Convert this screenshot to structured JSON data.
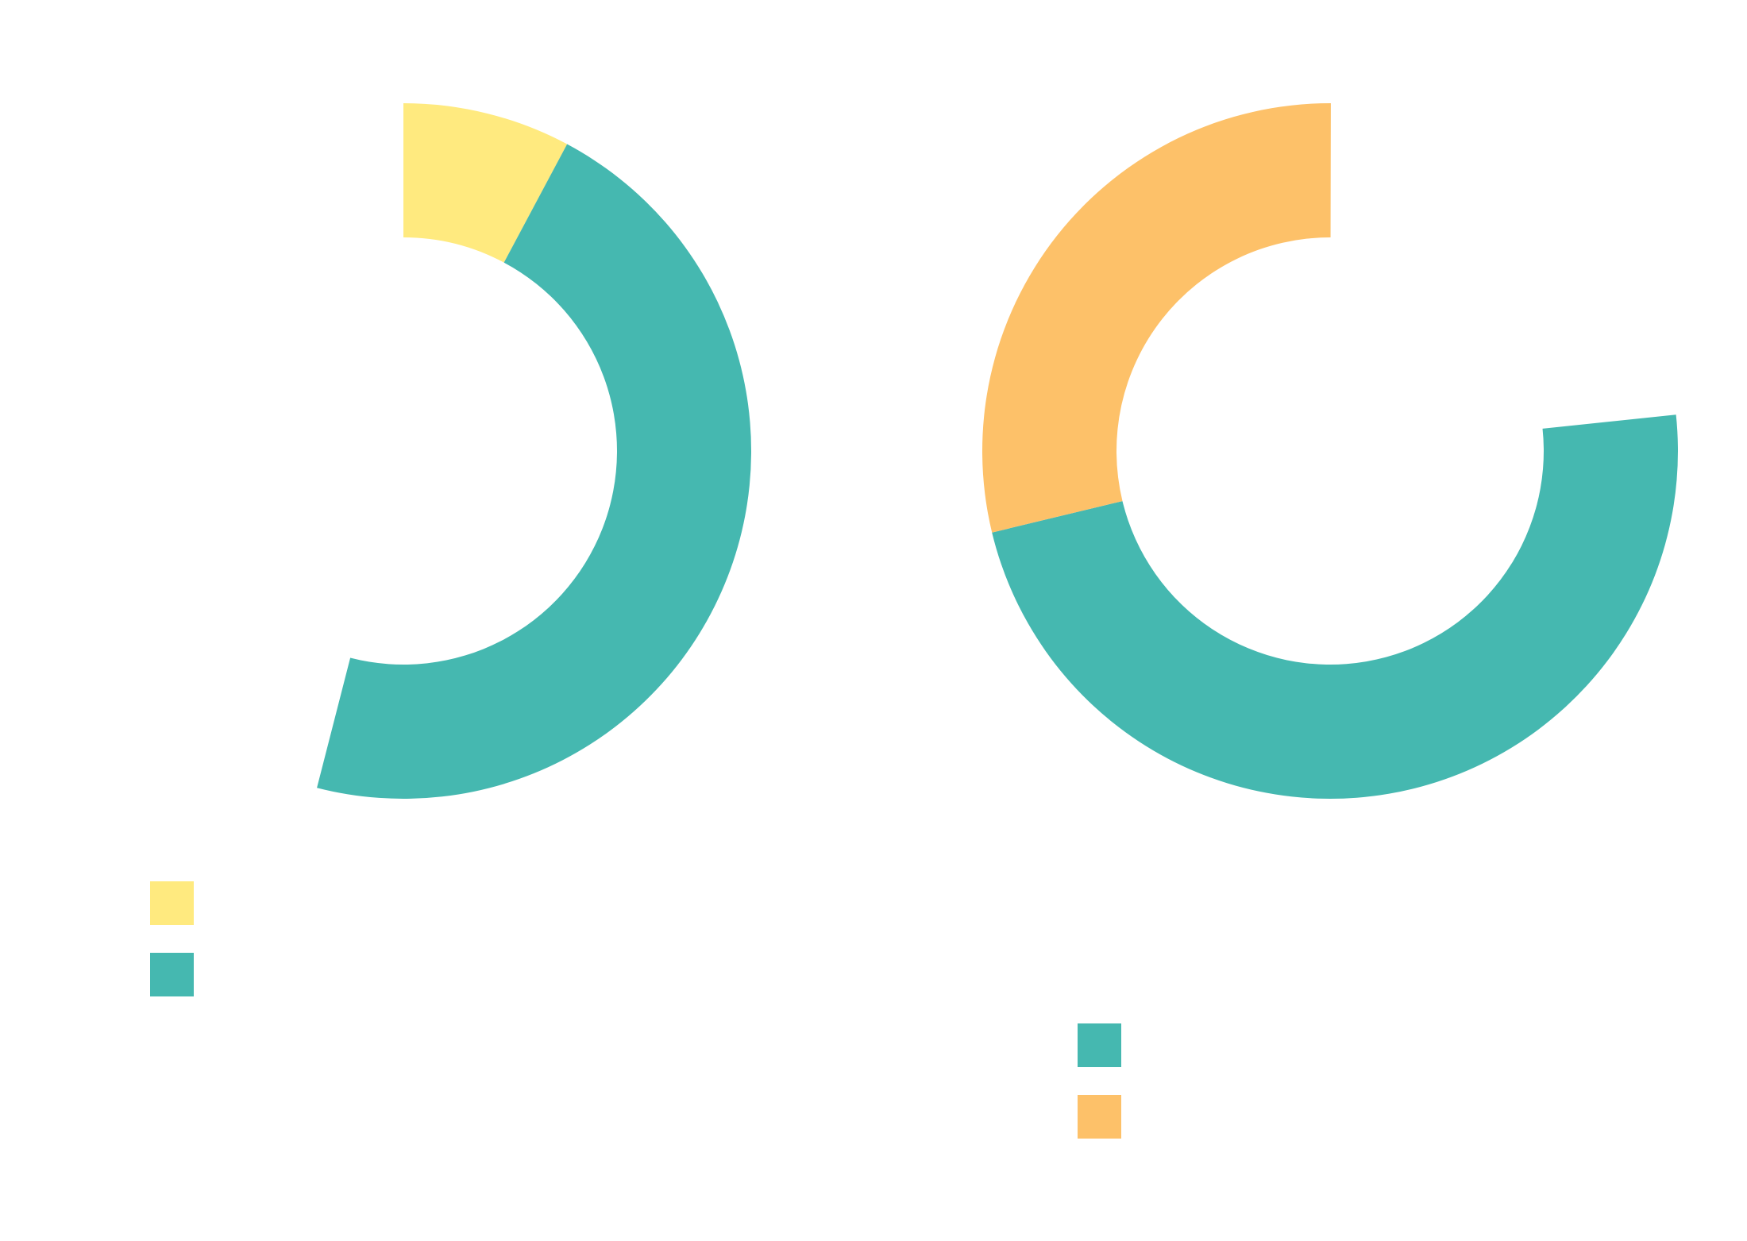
{
  "chart_data": [
    {
      "type": "donut",
      "startangle": 0,
      "values": [
        7.8,
        46.2
      ],
      "colors": [
        "#FFEA7F",
        "#45B8B0"
      ]
    },
    {
      "type": "donut",
      "startangle": 84,
      "values": [
        47.9,
        28.8
      ],
      "colors": [
        "#45B8B0",
        "#FDC169"
      ]
    }
  ]
}
